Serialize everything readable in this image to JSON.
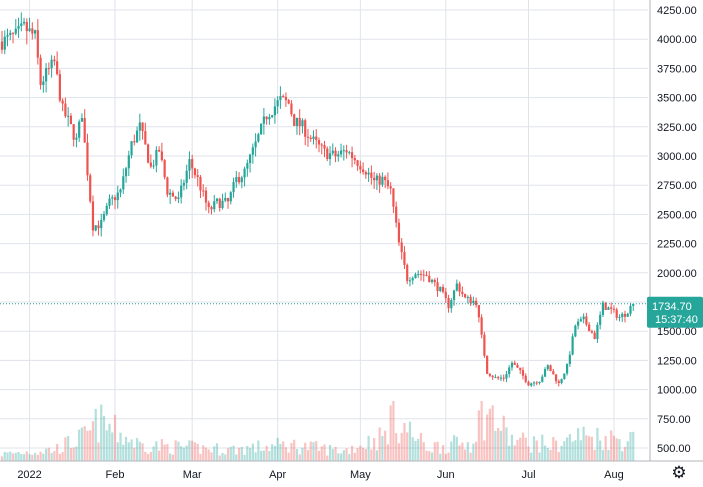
{
  "chart_data": {
    "type": "candlestick",
    "interval": "daily",
    "ylim": [
      450,
      4300
    ],
    "grid": true,
    "y_ticks": [
      "4250.00",
      "4000.00",
      "3750.00",
      "3500.00",
      "3250.00",
      "3000.00",
      "2750.00",
      "2500.00",
      "2250.00",
      "2000.00",
      "1750.00",
      "1500.00",
      "1250.00",
      "1000.00",
      "750.00",
      "500.00"
    ],
    "y_tick_values": [
      4250,
      4000,
      3750,
      3500,
      3250,
      3000,
      2750,
      2500,
      2250,
      2000,
      1750,
      1500,
      1250,
      1000,
      750,
      500
    ],
    "x_ticks": [
      {
        "label": "2022",
        "date": "2022-01-01"
      },
      {
        "label": "Feb",
        "date": "2022-02-01"
      },
      {
        "label": "Mar",
        "date": "2022-03-01"
      },
      {
        "label": "Apr",
        "date": "2022-04-01"
      },
      {
        "label": "May",
        "date": "2022-05-01"
      },
      {
        "label": "Jun",
        "date": "2022-06-01"
      },
      {
        "label": "Jul",
        "date": "2022-07-01"
      },
      {
        "label": "Aug",
        "date": "2022-08-01"
      }
    ],
    "x_start": "2021-12-22",
    "x_end": "2022-08-09",
    "last_price": {
      "value": 1734.7,
      "label": "1734.70",
      "countdown": "15:37:40",
      "color": "#26a69a"
    },
    "colors": {
      "up": "#26a69a",
      "down": "#ef5350",
      "grid": "#e0e3eb",
      "text": "#131722"
    },
    "close_path": [
      {
        "date": "2021-12-22",
        "close": 3980
      },
      {
        "date": "2021-12-27",
        "close": 4030
      },
      {
        "date": "2021-12-30",
        "close": 4100
      },
      {
        "date": "2022-01-03",
        "close": 4020
      },
      {
        "date": "2022-01-05",
        "close": 3620
      },
      {
        "date": "2022-01-07",
        "close": 3700
      },
      {
        "date": "2022-01-10",
        "close": 3800
      },
      {
        "date": "2022-01-13",
        "close": 3390
      },
      {
        "date": "2022-01-15",
        "close": 3300
      },
      {
        "date": "2022-01-18",
        "close": 3130
      },
      {
        "date": "2022-01-20",
        "close": 3370
      },
      {
        "date": "2022-01-21",
        "close": 3100
      },
      {
        "date": "2022-01-24",
        "close": 2400
      },
      {
        "date": "2022-01-27",
        "close": 2420
      },
      {
        "date": "2022-01-30",
        "close": 2600
      },
      {
        "date": "2022-02-03",
        "close": 2700
      },
      {
        "date": "2022-02-07",
        "close": 3100
      },
      {
        "date": "2022-02-10",
        "close": 3250
      },
      {
        "date": "2022-02-14",
        "close": 2900
      },
      {
        "date": "2022-02-17",
        "close": 3050
      },
      {
        "date": "2022-02-20",
        "close": 2700
      },
      {
        "date": "2022-02-24",
        "close": 2620
      },
      {
        "date": "2022-02-28",
        "close": 2950
      },
      {
        "date": "2022-03-03",
        "close": 2800
      },
      {
        "date": "2022-03-07",
        "close": 2530
      },
      {
        "date": "2022-03-10",
        "close": 2600
      },
      {
        "date": "2022-03-14",
        "close": 2600
      },
      {
        "date": "2022-03-17",
        "close": 2800
      },
      {
        "date": "2022-03-20",
        "close": 2860
      },
      {
        "date": "2022-03-24",
        "close": 3100
      },
      {
        "date": "2022-03-28",
        "close": 3350
      },
      {
        "date": "2022-04-02",
        "close": 3480
      },
      {
        "date": "2022-04-05",
        "close": 3450
      },
      {
        "date": "2022-04-07",
        "close": 3300
      },
      {
        "date": "2022-04-10",
        "close": 3250
      },
      {
        "date": "2022-04-13",
        "close": 3150
      },
      {
        "date": "2022-04-18",
        "close": 3030
      },
      {
        "date": "2022-04-22",
        "close": 3000
      },
      {
        "date": "2022-04-26",
        "close": 3050
      },
      {
        "date": "2022-04-30",
        "close": 2950
      },
      {
        "date": "2022-05-03",
        "close": 2880
      },
      {
        "date": "2022-05-06",
        "close": 2780
      },
      {
        "date": "2022-05-09",
        "close": 2800
      },
      {
        "date": "2022-05-12",
        "close": 2700
      },
      {
        "date": "2022-05-15",
        "close": 2250
      },
      {
        "date": "2022-05-18",
        "close": 1950
      },
      {
        "date": "2022-05-21",
        "close": 2000
      },
      {
        "date": "2022-05-25",
        "close": 1980
      },
      {
        "date": "2022-05-30",
        "close": 1850
      },
      {
        "date": "2022-06-02",
        "close": 1720
      },
      {
        "date": "2022-06-05",
        "close": 1900
      },
      {
        "date": "2022-06-08",
        "close": 1780
      },
      {
        "date": "2022-06-12",
        "close": 1750
      },
      {
        "date": "2022-06-14",
        "close": 1450
      },
      {
        "date": "2022-06-16",
        "close": 1150
      },
      {
        "date": "2022-06-19",
        "close": 1100
      },
      {
        "date": "2022-06-22",
        "close": 1100
      },
      {
        "date": "2022-06-25",
        "close": 1230
      },
      {
        "date": "2022-06-28",
        "close": 1150
      },
      {
        "date": "2022-07-01",
        "close": 1050
      },
      {
        "date": "2022-07-05",
        "close": 1080
      },
      {
        "date": "2022-07-08",
        "close": 1200
      },
      {
        "date": "2022-07-12",
        "close": 1050
      },
      {
        "date": "2022-07-15",
        "close": 1200
      },
      {
        "date": "2022-07-18",
        "close": 1550
      },
      {
        "date": "2022-07-21",
        "close": 1600
      },
      {
        "date": "2022-07-25",
        "close": 1450
      },
      {
        "date": "2022-07-28",
        "close": 1720
      },
      {
        "date": "2022-07-31",
        "close": 1680
      },
      {
        "date": "2022-08-03",
        "close": 1620
      },
      {
        "date": "2022-08-05",
        "close": 1650
      },
      {
        "date": "2022-08-08",
        "close": 1734.7
      }
    ],
    "volume_path": [
      {
        "date": "2021-12-22",
        "v": 0.15
      },
      {
        "date": "2022-01-10",
        "v": 0.25
      },
      {
        "date": "2022-01-22",
        "v": 0.55
      },
      {
        "date": "2022-01-26",
        "v": 0.85
      },
      {
        "date": "2022-02-10",
        "v": 0.35
      },
      {
        "date": "2022-02-25",
        "v": 0.3
      },
      {
        "date": "2022-03-15",
        "v": 0.25
      },
      {
        "date": "2022-04-05",
        "v": 0.35
      },
      {
        "date": "2022-04-25",
        "v": 0.22
      },
      {
        "date": "2022-05-10",
        "v": 0.55
      },
      {
        "date": "2022-05-12",
        "v": 1.0
      },
      {
        "date": "2022-05-25",
        "v": 0.3
      },
      {
        "date": "2022-06-10",
        "v": 0.4
      },
      {
        "date": "2022-06-14",
        "v": 1.05
      },
      {
        "date": "2022-06-18",
        "v": 0.95
      },
      {
        "date": "2022-06-25",
        "v": 0.45
      },
      {
        "date": "2022-07-10",
        "v": 0.35
      },
      {
        "date": "2022-07-20",
        "v": 0.55
      },
      {
        "date": "2022-08-08",
        "v": 0.45
      }
    ],
    "volume_scale_max": 1.05
  },
  "ui": {
    "settings_icon": "gear-icon"
  }
}
